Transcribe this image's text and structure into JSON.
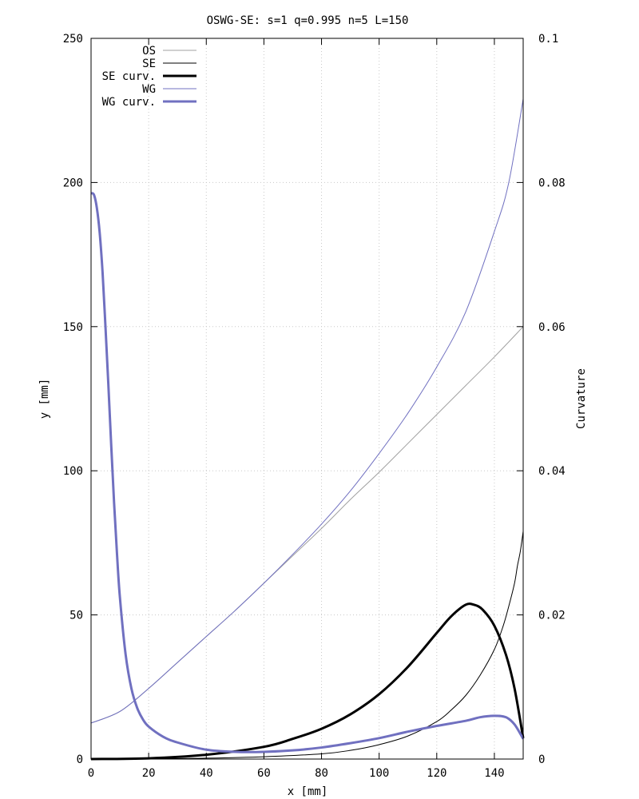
{
  "chart_data": {
    "type": "line",
    "title": "OSWG-SE: s=1 q=0.995 n=5 L=150",
    "xlabel": "x [mm]",
    "ylabel": "y [mm]",
    "y2label": "Curvature",
    "xlim": [
      0,
      150
    ],
    "ylim": [
      0,
      250
    ],
    "y2lim": [
      0,
      0.1
    ],
    "xticks": [
      "0",
      "20",
      "40",
      "60",
      "80",
      "100",
      "120",
      "140"
    ],
    "xtick_values": [
      0,
      20,
      40,
      60,
      80,
      100,
      120,
      140
    ],
    "yticks": [
      "0",
      "50",
      "100",
      "150",
      "200",
      "250"
    ],
    "ytick_values": [
      0,
      50,
      100,
      150,
      200,
      250
    ],
    "y2ticks": [
      "0",
      "0.02",
      "0.04",
      "0.06",
      "0.08",
      "0.1"
    ],
    "y2tick_values": [
      0,
      0.02,
      0.04,
      0.06,
      0.08,
      0.1
    ],
    "grid": true,
    "legend_position": "top-left",
    "series": [
      {
        "name": "OS",
        "axis": "y",
        "color": "#a0a0a0",
        "width": 1,
        "x": [
          0,
          10,
          20,
          30,
          40,
          50,
          60,
          70,
          80,
          90,
          100,
          110,
          120,
          130,
          140,
          150
        ],
        "y": [
          12.5,
          16.5,
          24.5,
          33.5,
          42.5,
          51.5,
          61,
          70.5,
          80,
          90,
          99.5,
          109.5,
          119.5,
          129.5,
          139.5,
          150
        ]
      },
      {
        "name": "SE",
        "axis": "y",
        "color": "#000000",
        "width": 1,
        "x": [
          0,
          20,
          40,
          60,
          80,
          90,
          100,
          110,
          120,
          125,
          130,
          135,
          140,
          143,
          145,
          147,
          148,
          149,
          150
        ],
        "y": [
          0,
          0.05,
          0.3,
          0.8,
          1.8,
          3,
          5,
          8,
          13,
          17,
          22,
          29,
          38,
          46,
          53,
          61,
          67,
          72,
          79
        ]
      },
      {
        "name": "SE curv.",
        "axis": "y2",
        "color": "#000000",
        "width": 3,
        "x": [
          0,
          20,
          40,
          60,
          70,
          80,
          90,
          100,
          110,
          120,
          125,
          130,
          133,
          136,
          140,
          144,
          147,
          150
        ],
        "y": [
          0,
          0.0001,
          0.0006,
          0.0017,
          0.0028,
          0.0042,
          0.0062,
          0.009,
          0.0128,
          0.0175,
          0.0198,
          0.0214,
          0.0214,
          0.0207,
          0.0185,
          0.0145,
          0.0098,
          0.0029
        ]
      },
      {
        "name": "WG",
        "axis": "y",
        "color": "#7070c0",
        "width": 1,
        "x": [
          0,
          10,
          20,
          30,
          40,
          50,
          60,
          70,
          80,
          90,
          100,
          110,
          120,
          130,
          140,
          145,
          150
        ],
        "y": [
          12.5,
          16.5,
          24.5,
          33.5,
          42.5,
          51.5,
          61,
          71,
          81.5,
          93,
          106,
          120,
          136,
          155,
          183,
          200,
          229
        ]
      },
      {
        "name": "WG curv.",
        "axis": "y2",
        "color": "#7070c0",
        "width": 3,
        "x": [
          0,
          1,
          2,
          3,
          4,
          5,
          6,
          7,
          8,
          9,
          10,
          12,
          14,
          16,
          18,
          20,
          25,
          30,
          40,
          50,
          60,
          70,
          80,
          90,
          100,
          110,
          120,
          130,
          135,
          140,
          144,
          147,
          150
        ],
        "y": [
          0.0785,
          0.0783,
          0.0765,
          0.073,
          0.0675,
          0.06,
          0.052,
          0.0435,
          0.0355,
          0.0285,
          0.0225,
          0.0145,
          0.0098,
          0.0071,
          0.0055,
          0.0045,
          0.0031,
          0.0023,
          0.0013,
          0.001,
          0.001,
          0.0012,
          0.0016,
          0.0022,
          0.0029,
          0.0038,
          0.0046,
          0.0053,
          0.0058,
          0.006,
          0.0058,
          0.0048,
          0.0028
        ]
      }
    ]
  }
}
